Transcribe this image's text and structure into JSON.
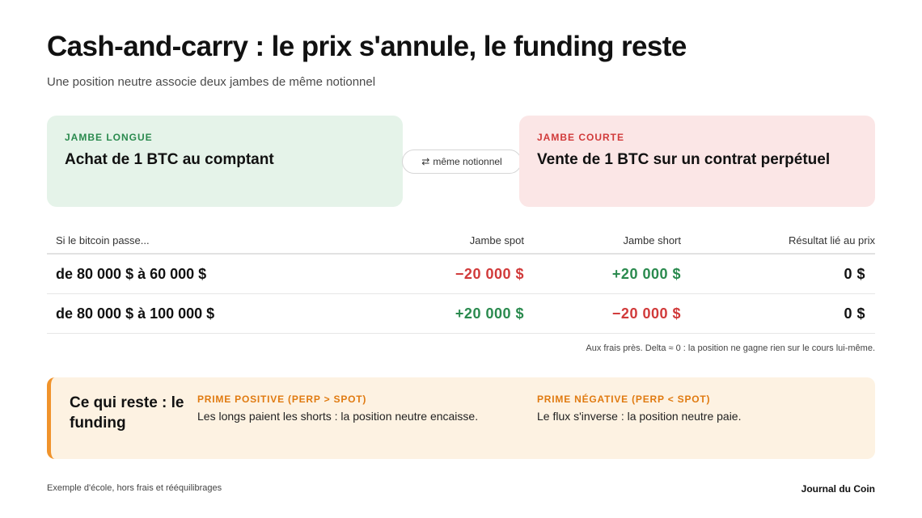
{
  "header": {
    "title": "Cash-and-carry : le prix s'annule, le funding reste",
    "subtitle": "Une position neutre associe deux jambes de même notionnel"
  },
  "legs": {
    "long": {
      "tag": "JAMBE LONGUE",
      "text": "Achat de 1 BTC au comptant"
    },
    "connector": {
      "icon": "swap-arrows-icon",
      "glyph": "⇄",
      "label": "même notionnel"
    },
    "short": {
      "tag": "JAMBE COURTE",
      "text": "Vente de 1 BTC sur un contrat perpétuel"
    }
  },
  "table": {
    "headers": [
      "Si le bitcoin passe...",
      "Jambe spot",
      "Jambe short",
      "Résultat lié au prix"
    ],
    "rows": [
      {
        "move": "de 80 000 $ à 60 000 $",
        "spot": "−20 000 $",
        "short": "+20 000 $",
        "result": "0 $"
      },
      {
        "move": "de 80 000 $ à 100 000 $",
        "spot": "+20 000 $",
        "short": "−20 000 $",
        "result": "0 $"
      }
    ],
    "note": "Aux frais près. Delta ≈ 0 : la position ne gagne rien sur le cours lui-même."
  },
  "callout": {
    "heading": "Ce qui reste : le funding",
    "positive": {
      "tag": "PRIME POSITIVE (PERP > SPOT)",
      "text": "Les longs paient les shorts : la position neutre encaisse."
    },
    "negative": {
      "tag": "PRIME NÉGATIVE (PERP < SPOT)",
      "text": "Le flux s'inverse : la position neutre paie."
    }
  },
  "footer": {
    "left": "Exemple d'école, hors frais et rééquilibrages",
    "right": "Journal du Coin"
  },
  "colors": {
    "positive": "#2a8a4e",
    "negative": "#d13a3a",
    "accent": "#f0932b",
    "long_bg": "#e5f3e9",
    "short_bg": "#fbe6e6",
    "callout_bg": "#fdf2e2"
  }
}
